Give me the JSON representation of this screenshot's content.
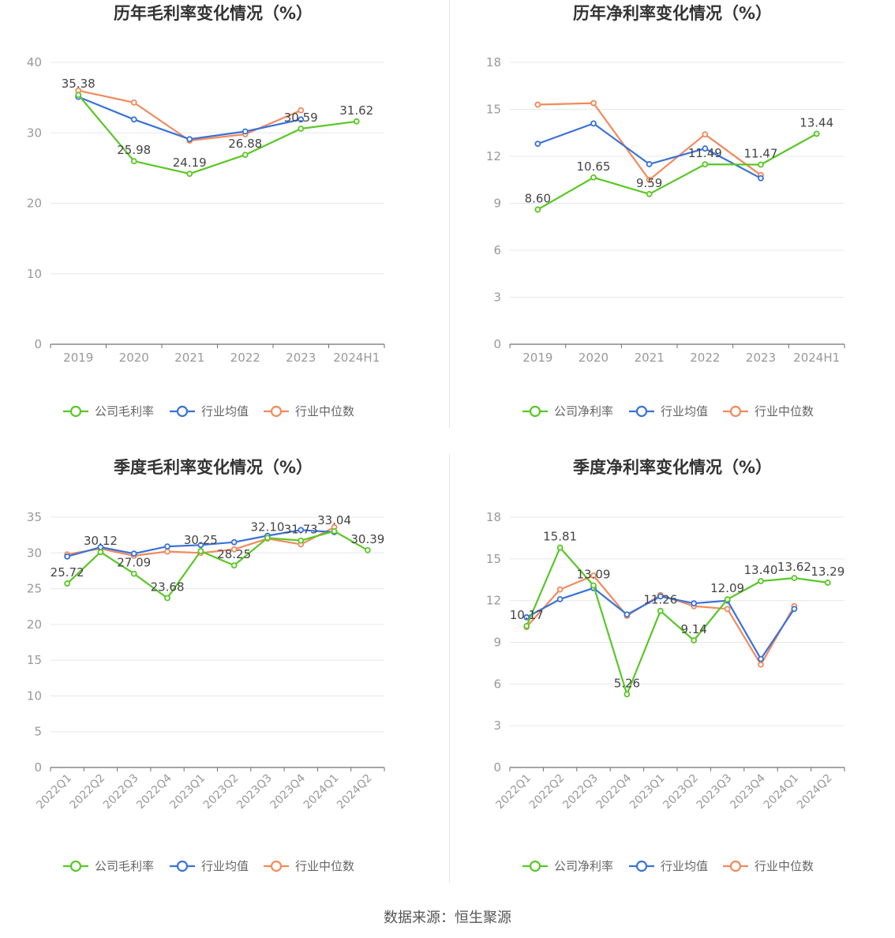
{
  "colors": {
    "company": "#5ac726",
    "industry_avg": "#3a72d8",
    "industry_median": "#f28a5c",
    "grid": "#e6e8ef",
    "axis": "#6e7079",
    "tick_text": "#999999",
    "label_text": "#444444",
    "title_text": "#333333"
  },
  "source_text": "数据来源：恒生聚源",
  "chart_data": [
    {
      "id": "annual-gross",
      "type": "line",
      "title": "历年毛利率变化情况（%）",
      "categories": [
        "2019",
        "2020",
        "2021",
        "2022",
        "2023",
        "2024H1"
      ],
      "ylim": [
        0,
        40
      ],
      "yticks": [
        0,
        10,
        20,
        30,
        40
      ],
      "series": [
        {
          "name": "公司毛利率",
          "key": "company",
          "values": [
            35.38,
            25.98,
            24.19,
            26.88,
            30.59,
            31.62
          ],
          "labels": [
            "35.38",
            "25.98",
            "24.19",
            "26.88",
            "30.59",
            "31.62"
          ]
        },
        {
          "name": "行业均值",
          "key": "industry_avg",
          "values": [
            35.1,
            31.9,
            29.1,
            30.2,
            31.9,
            null
          ]
        },
        {
          "name": "行业中位数",
          "key": "industry_median",
          "values": [
            36.0,
            34.3,
            28.9,
            29.8,
            33.2,
            null
          ]
        }
      ],
      "legend": [
        "公司毛利率",
        "行业均值",
        "行业中位数"
      ]
    },
    {
      "id": "annual-net",
      "type": "line",
      "title": "历年净利率变化情况（%）",
      "categories": [
        "2019",
        "2020",
        "2021",
        "2022",
        "2023",
        "2024H1"
      ],
      "ylim": [
        0,
        18
      ],
      "yticks": [
        0,
        3,
        6,
        9,
        12,
        15,
        18
      ],
      "series": [
        {
          "name": "公司净利率",
          "key": "company",
          "values": [
            8.6,
            10.65,
            9.59,
            11.49,
            11.47,
            13.44
          ],
          "labels": [
            "8.60",
            "10.65",
            "9.59",
            "11.49",
            "11.47",
            "13.44"
          ]
        },
        {
          "name": "行业均值",
          "key": "industry_avg",
          "values": [
            12.8,
            14.1,
            11.5,
            12.5,
            10.6,
            null
          ]
        },
        {
          "name": "行业中位数",
          "key": "industry_median",
          "values": [
            15.3,
            15.4,
            10.5,
            13.4,
            10.8,
            null
          ]
        }
      ],
      "legend": [
        "公司净利率",
        "行业均值",
        "行业中位数"
      ]
    },
    {
      "id": "quarterly-gross",
      "type": "line",
      "title": "季度毛利率变化情况（%）",
      "categories": [
        "2022Q1",
        "2022Q2",
        "2022Q3",
        "2022Q4",
        "2023Q1",
        "2023Q2",
        "2023Q3",
        "2023Q4",
        "2024Q1",
        "2024Q2"
      ],
      "ylim": [
        0,
        35
      ],
      "yticks": [
        0,
        5,
        10,
        15,
        20,
        25,
        30,
        35
      ],
      "series": [
        {
          "name": "公司毛利率",
          "key": "company",
          "values": [
            25.72,
            30.12,
            27.09,
            23.68,
            30.25,
            28.25,
            32.1,
            31.73,
            33.04,
            30.39
          ],
          "labels": [
            "25.72",
            "30.12",
            "27.09",
            "23.68",
            "30.25",
            "28.25",
            "32.10",
            "31.73",
            "33.04",
            "30.39"
          ]
        },
        {
          "name": "行业均值",
          "key": "industry_avg",
          "values": [
            29.5,
            30.8,
            29.9,
            30.9,
            31.1,
            31.5,
            32.4,
            33.2,
            32.9,
            null
          ]
        },
        {
          "name": "行业中位数",
          "key": "industry_median",
          "values": [
            29.8,
            30.6,
            29.6,
            30.2,
            30.0,
            30.5,
            32.0,
            31.2,
            33.6,
            null
          ]
        }
      ],
      "legend": [
        "公司毛利率",
        "行业均值",
        "行业中位数"
      ]
    },
    {
      "id": "quarterly-net",
      "type": "line",
      "title": "季度净利率变化情况（%）",
      "categories": [
        "2022Q1",
        "2022Q2",
        "2022Q3",
        "2022Q4",
        "2023Q1",
        "2023Q2",
        "2023Q3",
        "2023Q4",
        "2024Q1",
        "2024Q2"
      ],
      "ylim": [
        0,
        18
      ],
      "yticks": [
        0,
        3,
        6,
        9,
        12,
        15,
        18
      ],
      "series": [
        {
          "name": "公司净利率",
          "key": "company",
          "values": [
            10.17,
            15.81,
            13.09,
            5.26,
            11.26,
            9.14,
            12.09,
            13.4,
            13.62,
            13.29
          ],
          "labels": [
            "10.17",
            "15.81",
            "13.09",
            "5.26",
            "11.26",
            "9.14",
            "12.09",
            "13.40",
            "13.62",
            "13.29"
          ]
        },
        {
          "name": "行业均值",
          "key": "industry_avg",
          "values": [
            10.8,
            12.1,
            12.9,
            11.0,
            12.3,
            11.8,
            12.0,
            7.8,
            11.4,
            null
          ]
        },
        {
          "name": "行业中位数",
          "key": "industry_median",
          "values": [
            10.1,
            12.8,
            13.8,
            10.9,
            12.4,
            11.6,
            11.4,
            7.4,
            11.6,
            null
          ]
        }
      ],
      "legend": [
        "公司净利率",
        "行业均值",
        "行业中位数"
      ]
    }
  ]
}
